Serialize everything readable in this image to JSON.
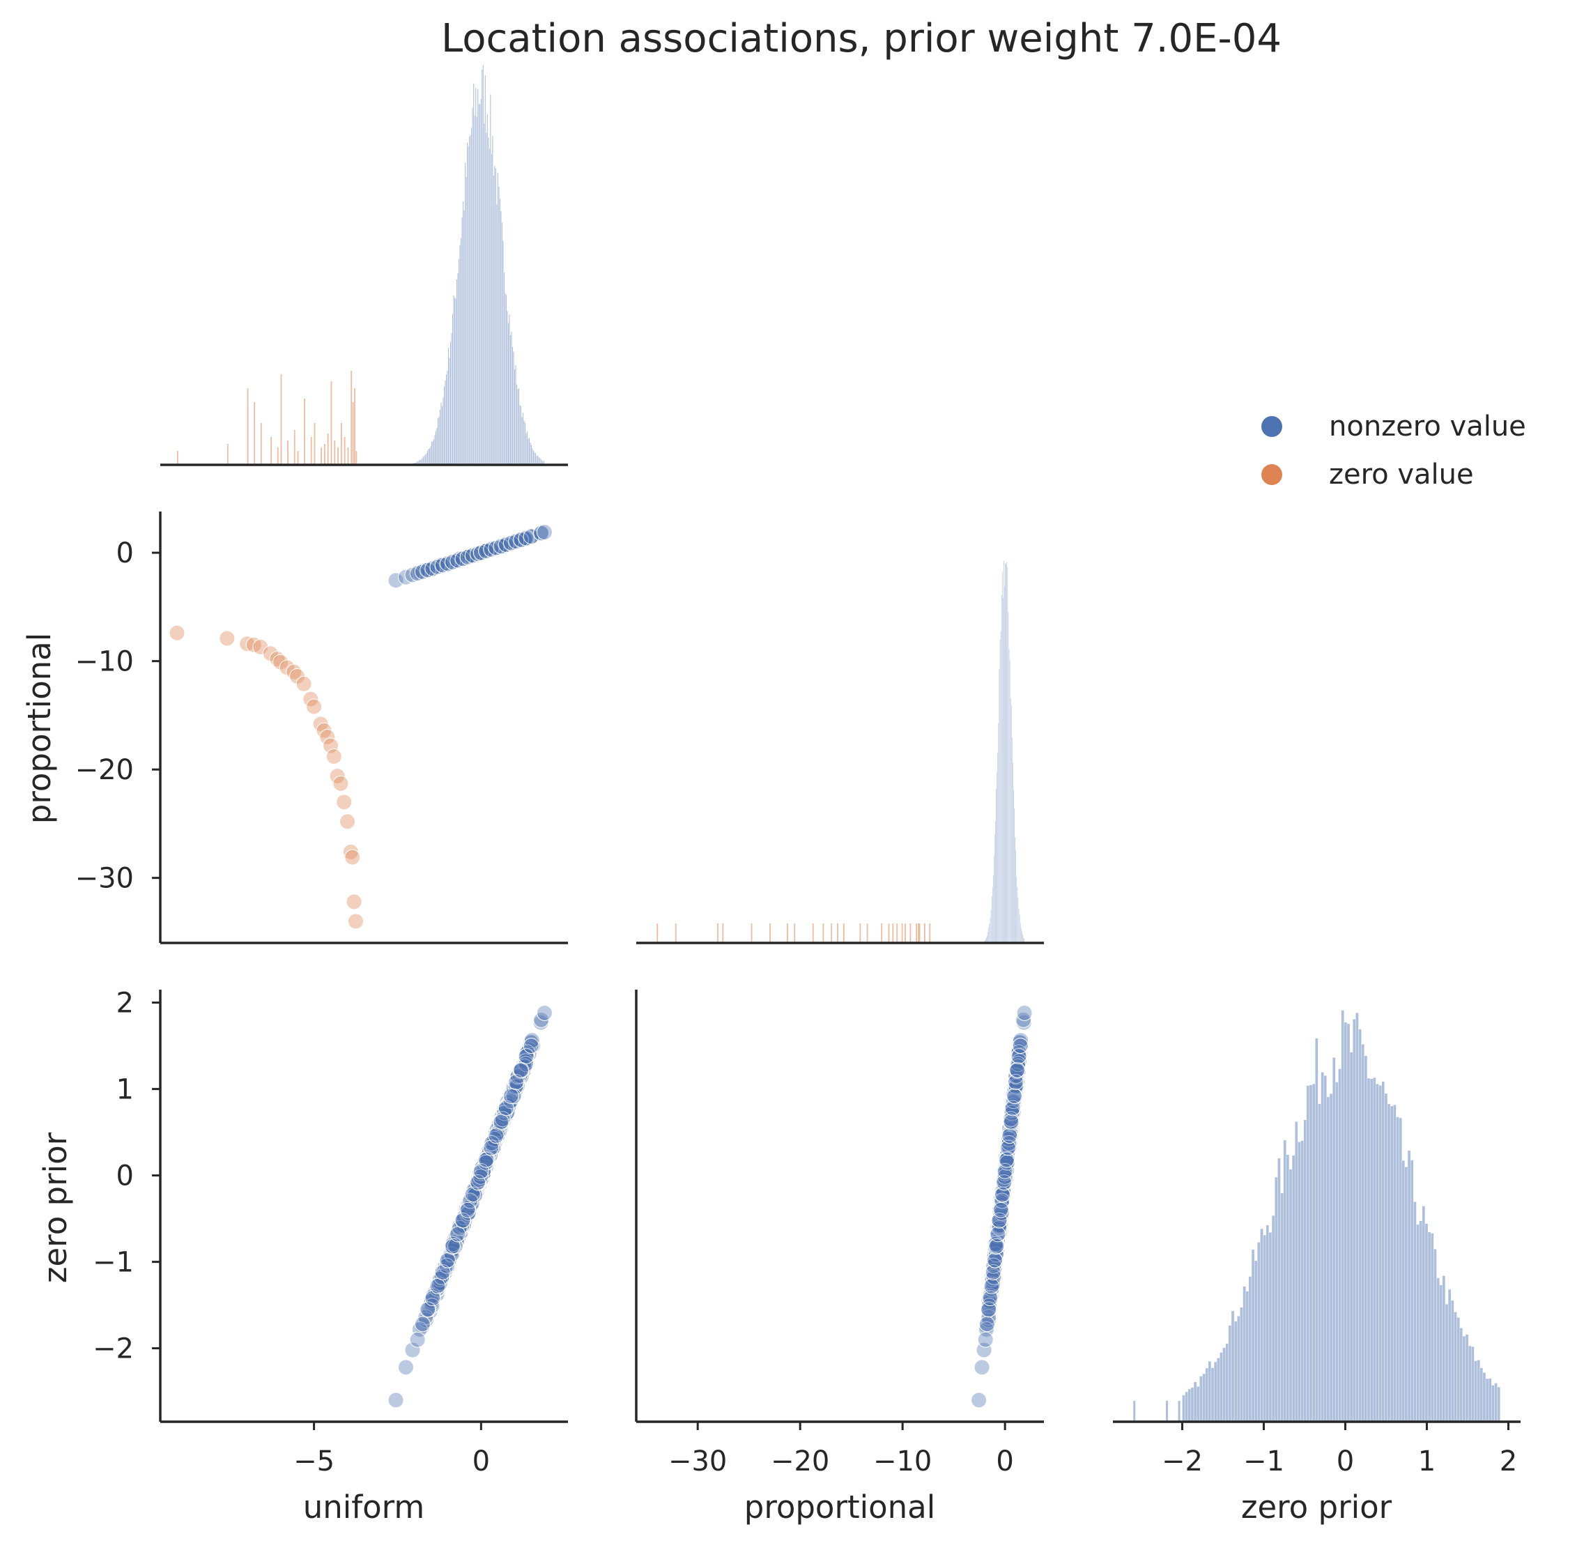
{
  "chart_data": {
    "type": "scatter",
    "layout": "pairplot-lower-corner",
    "title": "Location associations, prior weight 7.0E-04",
    "variables": [
      "uniform",
      "proportional",
      "zero prior"
    ],
    "legend": {
      "placement": "right",
      "entries": [
        {
          "label": "nonzero value",
          "color": "#4c72b0"
        },
        {
          "label": "zero value",
          "color": "#dd8452"
        }
      ]
    },
    "axes": {
      "uniform": {
        "range": [
          -9.6,
          2.6
        ],
        "ticks": [
          "−5",
          "0"
        ],
        "tick_values": [
          -5,
          0
        ],
        "label": "uniform"
      },
      "proportional": {
        "range": [
          -36,
          3.8
        ],
        "ticks": [
          "−30",
          "−20",
          "−10",
          "0"
        ],
        "tick_values": [
          -30,
          -20,
          -10,
          0
        ],
        "label": "proportional"
      },
      "zero prior": {
        "range": [
          -2.85,
          2.15
        ],
        "ticks": [
          "−2",
          "−1",
          "0",
          "1",
          "2"
        ],
        "tick_values": [
          -2,
          -1,
          0,
          1,
          2
        ],
        "label": "zero prior"
      }
    },
    "grid": false,
    "series": [
      {
        "name": "nonzero value",
        "color": "#4c72b0",
        "approx_relation": {
          "proportional": "≈ uniform",
          "zero prior": "≈ uniform",
          "uniform_range": [
            -2.6,
            1.9
          ]
        },
        "points_uniform_zeroprior": [
          [
            -2.55,
            -2.6
          ],
          [
            -2.25,
            -2.22
          ],
          [
            -2.05,
            -2.02
          ],
          [
            -1.9,
            -1.9
          ],
          [
            -1.75,
            -1.72
          ],
          [
            -1.6,
            -1.55
          ],
          [
            -1.45,
            -1.42
          ],
          [
            -1.3,
            -1.28
          ],
          [
            -1.15,
            -1.12
          ],
          [
            -1.0,
            -0.98
          ],
          [
            -0.85,
            -0.82
          ],
          [
            -0.7,
            -0.68
          ],
          [
            -0.55,
            -0.52
          ],
          [
            -0.4,
            -0.4
          ],
          [
            -0.25,
            -0.22
          ],
          [
            -0.1,
            -0.08
          ],
          [
            0.0,
            0.05
          ],
          [
            0.15,
            0.18
          ],
          [
            0.3,
            0.32
          ],
          [
            0.45,
            0.46
          ],
          [
            0.6,
            0.62
          ],
          [
            0.75,
            0.78
          ],
          [
            0.9,
            0.92
          ],
          [
            1.05,
            1.08
          ],
          [
            1.2,
            1.22
          ],
          [
            1.35,
            1.38
          ],
          [
            1.5,
            1.5
          ],
          [
            1.8,
            1.8
          ],
          [
            1.9,
            1.88
          ]
        ]
      },
      {
        "name": "zero value",
        "color": "#dd8452",
        "points_uniform_proportional": [
          [
            -9.1,
            -7.4
          ],
          [
            -7.6,
            -7.9
          ],
          [
            -7.0,
            -8.4
          ],
          [
            -6.8,
            -8.5
          ],
          [
            -6.6,
            -8.7
          ],
          [
            -6.3,
            -9.3
          ],
          [
            -6.1,
            -9.8
          ],
          [
            -6.0,
            -10.1
          ],
          [
            -5.8,
            -10.6
          ],
          [
            -5.6,
            -11.0
          ],
          [
            -5.5,
            -11.4
          ],
          [
            -5.3,
            -12.1
          ],
          [
            -5.1,
            -13.5
          ],
          [
            -5.0,
            -14.2
          ],
          [
            -4.8,
            -15.8
          ],
          [
            -4.7,
            -16.4
          ],
          [
            -4.6,
            -17.0
          ],
          [
            -4.5,
            -17.8
          ],
          [
            -4.4,
            -18.8
          ],
          [
            -4.3,
            -20.6
          ],
          [
            -4.2,
            -21.3
          ],
          [
            -4.1,
            -23.0
          ],
          [
            -4.0,
            -24.8
          ],
          [
            -3.9,
            -27.6
          ],
          [
            -3.85,
            -28.1
          ],
          [
            -3.8,
            -32.2
          ],
          [
            -3.75,
            -34.0
          ]
        ]
      }
    ],
    "histograms": {
      "uniform": {
        "nonzero_range": [
          -2.5,
          1.9
        ],
        "peak_at": 0.0,
        "zero_value_rug_range": [
          -9.1,
          -3.7
        ]
      },
      "proportional": {
        "nonzero_range": [
          -2.5,
          1.9
        ],
        "peak_at": 0.0,
        "zero_value_rug_range": [
          -34.5,
          -7.0
        ]
      },
      "zero prior": {
        "range": [
          -2.6,
          1.9
        ],
        "peak_at": 0.0
      }
    }
  }
}
